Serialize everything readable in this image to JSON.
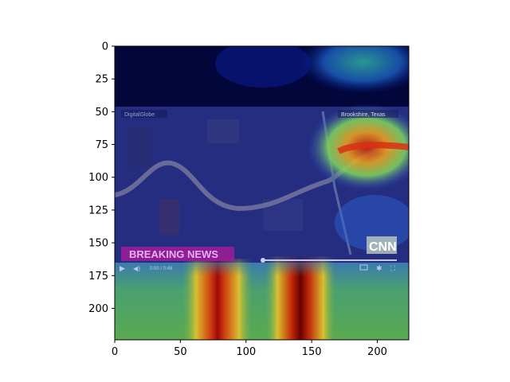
{
  "axes": {
    "x_ticks": [
      0,
      50,
      100,
      150,
      200
    ],
    "y_ticks": [
      0,
      25,
      50,
      75,
      100,
      125,
      150,
      175,
      200
    ],
    "x_range": [
      0,
      224
    ],
    "y_range": [
      0,
      224
    ],
    "y_inverted": true
  },
  "image": {
    "description_kind": "news video frame (satellite river view) with attention heatmap overlay",
    "watermark_left": "DigitalGlobe",
    "watermark_right": "Brookshire, Texas",
    "banner_text": "BREAKING NEWS",
    "logo_text": "CNN",
    "player_time": "0:00  /  0:48"
  },
  "colors": {
    "letterbox": "#02063a",
    "satellite_tint": "#2a2f7a",
    "heat_low": "#0a1a8c",
    "heat_mid": "#2fa06a",
    "heat_high": "#d42a10",
    "heat_peak": "#7a0000",
    "banner": "#a01c9a"
  }
}
